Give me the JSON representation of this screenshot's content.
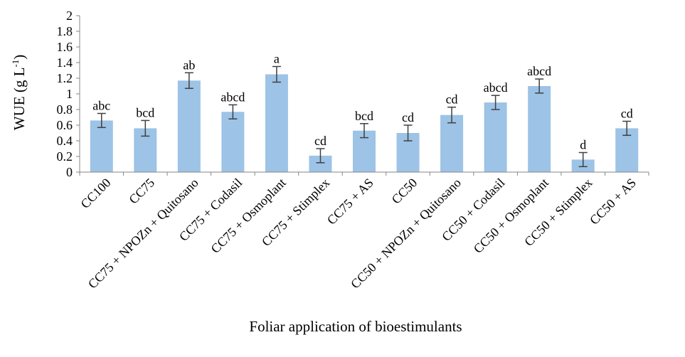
{
  "chart_data": {
    "type": "bar",
    "title": "",
    "ylabel_main": "WUE  (g  L",
    "ylabel_sup": "-1",
    "ylabel_close": ")",
    "xlabel": "Foliar application of bioestimulants",
    "ylim": [
      0,
      2
    ],
    "yticks": [
      "0",
      "0.2",
      "0.4",
      "0.6",
      "0.8",
      "1",
      "1.2",
      "1.4",
      "1.6",
      "1.8",
      "2"
    ],
    "grid": false,
    "bar_color": "#9dc3e6",
    "categories": [
      "CC100",
      "CC75",
      "CC75 + NPOZn + Quitosano",
      "CC75 + Codasil",
      "CC75 + Osmoplant",
      "CC75 + Stimplex",
      "CC75 + AS",
      "CC50",
      "CC50 + NPOZn + Quitosano",
      "CC50 + Codasil",
      "CC50 + Osmoplant",
      "CC50 + Stimplex",
      "CC50 + AS"
    ],
    "values": [
      0.66,
      0.56,
      1.17,
      0.77,
      1.25,
      0.21,
      0.53,
      0.5,
      0.73,
      0.89,
      1.1,
      0.16,
      0.56
    ],
    "errors": [
      0.09,
      0.1,
      0.1,
      0.09,
      0.1,
      0.09,
      0.09,
      0.1,
      0.1,
      0.09,
      0.09,
      0.09,
      0.09
    ],
    "letters": [
      "abc",
      "bcd",
      "ab",
      "abcd",
      "a",
      "cd",
      "bcd",
      "cd",
      "cd",
      "abcd",
      "abcd",
      "d",
      "cd"
    ]
  }
}
